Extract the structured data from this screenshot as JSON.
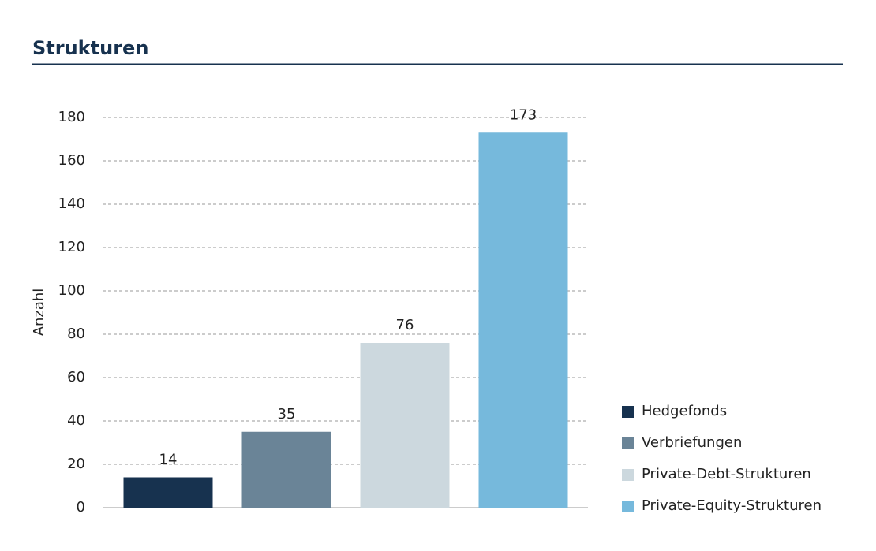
{
  "header": {
    "title": "Strukturen"
  },
  "chart_data": {
    "type": "bar",
    "y_label": "Anzahl",
    "categories": [
      "Hedgefonds",
      "Verbriefungen",
      "Private-Debt-Strukturen",
      "Private-Equity-Strukturen"
    ],
    "values": [
      14,
      35,
      76,
      173
    ],
    "colors": [
      "#17324f",
      "#6a8497",
      "#ccd8de",
      "#76b9dc"
    ],
    "ylim": [
      0,
      180
    ],
    "yticks": [
      0,
      20,
      40,
      60,
      80,
      100,
      120,
      140,
      160,
      180
    ],
    "grid": true,
    "legend": "right"
  }
}
